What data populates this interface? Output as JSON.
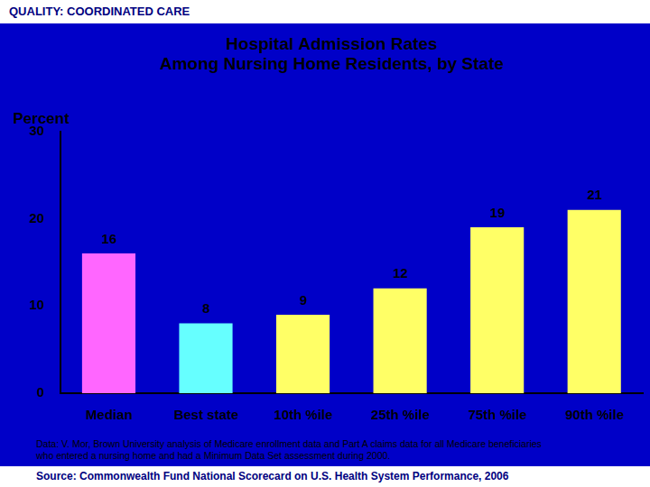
{
  "header": "QUALITY: COORDINATED CARE",
  "chart_data": {
    "type": "bar",
    "title": [
      "Hospital Admission Rates",
      "Among Nursing Home Residents, by State"
    ],
    "y_label": "Percent",
    "categories": [
      "Median",
      "Best state",
      "10th %ile",
      "25th %ile",
      "75th %ile",
      "90th %ile"
    ],
    "values": [
      16,
      8,
      9,
      12,
      19,
      21
    ],
    "colors": [
      "#ff66ff",
      "#66ffff",
      "#ffff66",
      "#ffff66",
      "#ffff66",
      "#ffff66"
    ],
    "ylim": [
      0,
      30
    ],
    "yticks": [
      0,
      10,
      20,
      30
    ],
    "grid": false,
    "data_labels": true
  },
  "footer": {
    "data_note": "Data: V. Mor, Brown University analysis of Medicare enrollment data and Part A claims data for all Medicare beneficiaries who entered a nursing home and had a Minimum Data Set assessment during 2000.",
    "source": "Source: Commonwealth Fund National Scorecard on U.S. Health System Performance, 2006"
  }
}
